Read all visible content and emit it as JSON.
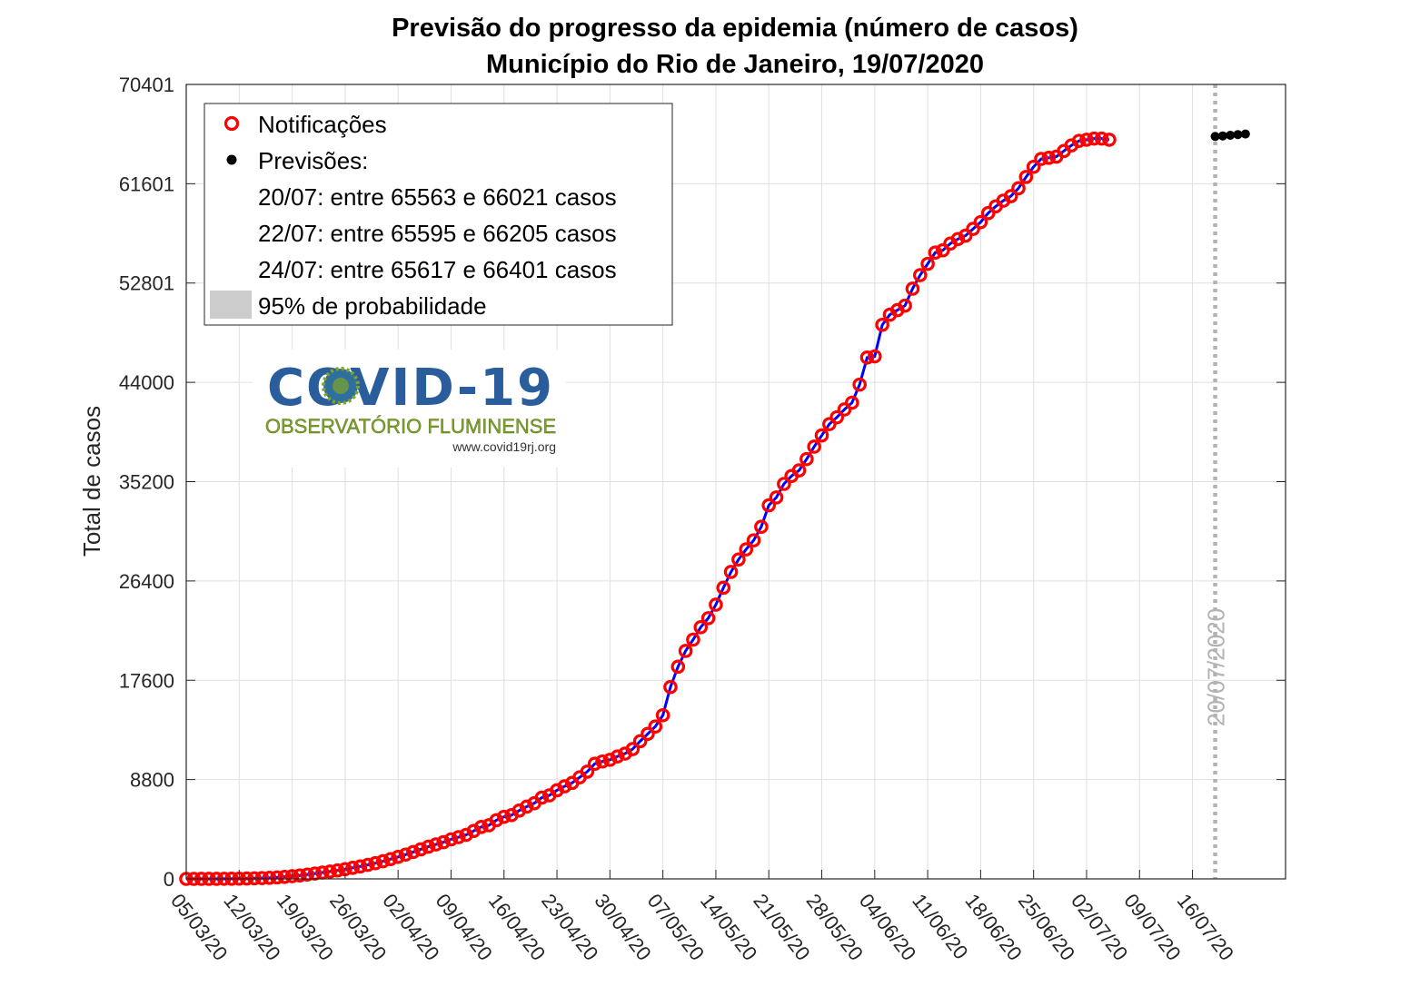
{
  "chart_data": {
    "type": "line",
    "title": "Previsão do progresso da epidemia (número de casos)",
    "subtitle": "Município do Rio de Janeiro, 19/07/2020",
    "ylabel": "Total de casos",
    "xlabel": "",
    "ylim": [
      0,
      70401
    ],
    "yticks": [
      "0",
      "8800",
      "17600",
      "26400",
      "35200",
      "44000",
      "52801",
      "61601",
      "70401"
    ],
    "xticks": [
      "05/03/20",
      "12/03/20",
      "19/03/20",
      "26/03/20",
      "02/04/20",
      "09/04/20",
      "16/04/20",
      "23/04/20",
      "30/04/20",
      "07/05/20",
      "14/05/20",
      "21/05/20",
      "28/05/20",
      "04/06/20",
      "11/06/20",
      "18/06/20",
      "25/06/20",
      "02/07/20",
      "09/07/20",
      "16/07/20"
    ],
    "grid": true,
    "legend_position": "top-left",
    "start_date": "05/03/20",
    "series": [
      {
        "name": "Notificações",
        "color": "#ff0000",
        "line_color": "#0000ff",
        "values": [
          1,
          1,
          2,
          3,
          5,
          8,
          12,
          20,
          33,
          50,
          70,
          95,
          130,
          180,
          240,
          300,
          380,
          470,
          560,
          650,
          750,
          860,
          980,
          1100,
          1240,
          1390,
          1560,
          1750,
          1950,
          2150,
          2380,
          2620,
          2850,
          3050,
          3250,
          3500,
          3700,
          3900,
          4250,
          4600,
          4750,
          5200,
          5500,
          5650,
          6050,
          6400,
          6700,
          7200,
          7400,
          7850,
          8200,
          8500,
          9000,
          9500,
          10200,
          10400,
          10550,
          10850,
          11100,
          11500,
          12200,
          12850,
          13500,
          14500,
          17000,
          18800,
          20200,
          21200,
          22300,
          23100,
          24300,
          25800,
          27200,
          28300,
          29200,
          30000,
          31200,
          33100,
          33800,
          35000,
          35700,
          36200,
          37200,
          38300,
          39300,
          40300,
          40900,
          41600,
          42200,
          43800,
          46200,
          46300,
          49100,
          50000,
          50400,
          50800,
          52300,
          53500,
          54500,
          55500,
          55700,
          56300,
          56700,
          57000,
          57600,
          58200,
          59000,
          59600,
          60100,
          60500,
          61200,
          62200,
          63100,
          63800,
          63900,
          64000,
          64500,
          65000,
          65400,
          65500,
          65600,
          65600,
          65500
        ]
      },
      {
        "name": "Previsões:",
        "color": "#000000",
        "x_start": 136,
        "values": [
          65790,
          65840,
          65900,
          65960,
          66010
        ]
      }
    ],
    "forecasts": [
      {
        "date": "20/07",
        "low": 65563,
        "high": 66021
      },
      {
        "date": "22/07",
        "low": 65595,
        "high": 66205
      },
      {
        "date": "24/07",
        "low": 65617,
        "high": 66401
      }
    ],
    "vline": {
      "label": "20/07/2020",
      "x": 136,
      "color": "#b3b3b3"
    }
  },
  "legend": {
    "notificacoes": "Notificações",
    "previsoes": "Previsões:",
    "f1": "20/07: entre 65563 e 66021 casos",
    "f2": "22/07: entre 65595 e 66205 casos",
    "f3": "24/07: entre 65617 e 66401 casos",
    "prob": "95% de probabilidade",
    "prob_color": "#cccccc"
  },
  "logo": {
    "word": "COVID-19",
    "org": "OBSERVATÓRIO FLUMINENSE",
    "url": "www.covid19rj.org",
    "blue": "#2a5d9c",
    "green": "#7fa328"
  }
}
